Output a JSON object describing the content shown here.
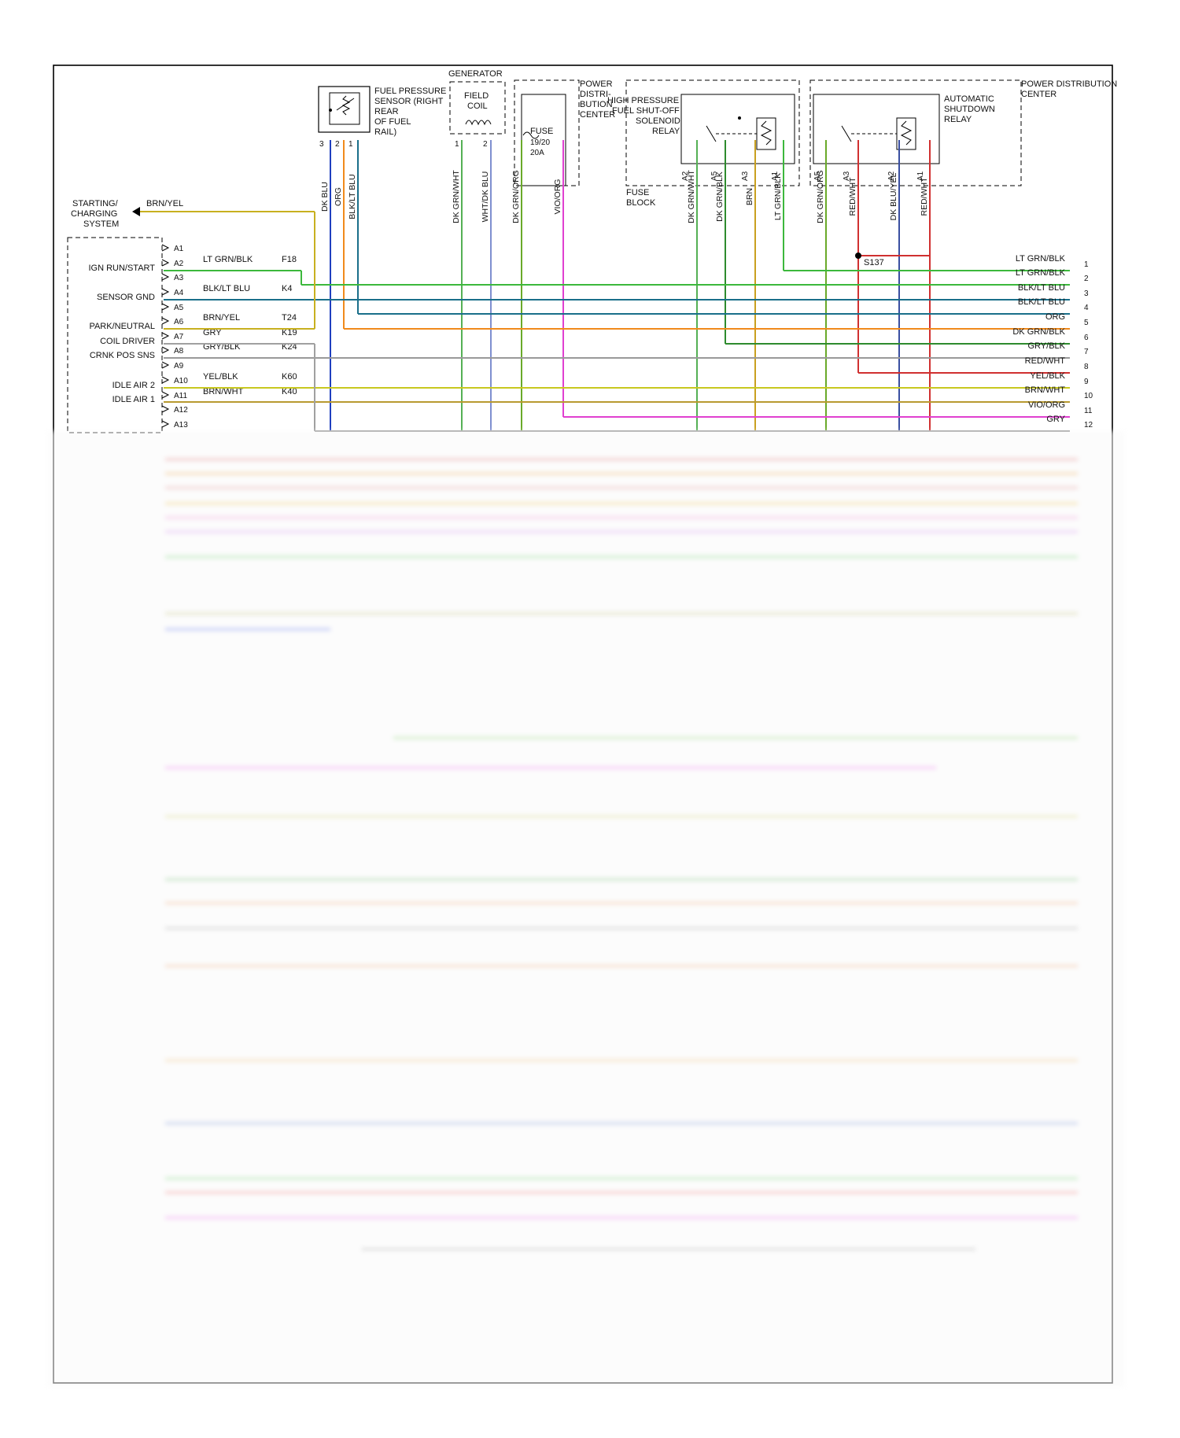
{
  "components": {
    "fuel_pressure_sensor": {
      "label": [
        "FUEL PRESSURE",
        "SENSOR (RIGHT",
        "REAR",
        "OF FUEL",
        "RAIL)"
      ],
      "pins": [
        "3",
        "2",
        "1"
      ]
    },
    "generator": {
      "label": "GENERATOR",
      "coil_label": [
        "FIELD",
        "COIL"
      ],
      "pins": [
        "1",
        "2"
      ]
    },
    "pdc_fuse": {
      "label": [
        "POWER",
        "DISTRI-",
        "BUTION",
        "CENTER"
      ],
      "fuse": [
        "FUSE",
        "19/20",
        "20A"
      ]
    },
    "hp_relay": {
      "label": [
        "HIGH PRESSURE",
        "FUEL SHUT-OFF",
        "SOLENOID",
        "RELAY"
      ],
      "fuse_block": [
        "FUSE",
        "BLOCK"
      ],
      "pins": [
        "A2",
        "A5",
        "A3",
        "A1"
      ]
    },
    "asd_relay": {
      "label": [
        "AUTOMATIC",
        "SHUTDOWN",
        "RELAY"
      ],
      "pdc_label": [
        "POWER DISTRIBUTION",
        "CENTER"
      ],
      "pins": [
        "A5",
        "A3",
        "A2",
        "A1"
      ]
    },
    "starting_charging": {
      "label": [
        "STARTING/",
        "CHARGING",
        "SYSTEM"
      ],
      "wire": "BRN/YEL"
    },
    "splice": "S137"
  },
  "top_wires": [
    {
      "name": "DK BLU",
      "color": "#1f3fbf"
    },
    {
      "name": "ORG",
      "color": "#f08a1c"
    },
    {
      "name": "BLK/LT BLU",
      "color": "#1a6f8a"
    },
    {
      "name": "DK GRN/WHT",
      "color": "#55b055"
    },
    {
      "name": "WHT/DK BLU",
      "color": "#7f8fd0"
    },
    {
      "name": "DK GRN/ORG",
      "color": "#6aaa2a"
    },
    {
      "name": "VIO/ORG",
      "color": "#e040d0"
    },
    {
      "name": "DK GRN/WHT",
      "color": "#55b055"
    },
    {
      "name": "DK GRN/BLK",
      "color": "#2e8b2e"
    },
    {
      "name": "BRN",
      "color": "#c9a020"
    },
    {
      "name": "LT GRN/BLK",
      "color": "#3cb83c"
    },
    {
      "name": "DK GRN/ORG",
      "color": "#6aaa2a"
    },
    {
      "name": "RED/WHT",
      "color": "#d03030"
    },
    {
      "name": "DK BLU/YEL",
      "color": "#3a4fa0"
    },
    {
      "name": "RED/WHT",
      "color": "#d03030"
    }
  ],
  "ecm": {
    "functions": [
      "IGN RUN/START",
      "SENSOR GND",
      "PARK/NEUTRAL",
      "COIL DRIVER",
      "CRNK POS SNS",
      "IDLE AIR 2",
      "IDLE AIR 1"
    ],
    "pins": [
      "A1",
      "A2",
      "A3",
      "A4",
      "A5",
      "A6",
      "A7",
      "A8",
      "A9",
      "A10",
      "A11",
      "A12",
      "A13"
    ],
    "wires": [
      {
        "pin": "A2",
        "wire": "LT GRN/BLK",
        "circuit": "F18"
      },
      {
        "pin": "A4",
        "wire": "BLK/LT BLU",
        "circuit": "K4"
      },
      {
        "pin": "A6",
        "wire": "BRN/YEL",
        "circuit": "T24"
      },
      {
        "pin": "A7",
        "wire": "GRY",
        "circuit": "K19"
      },
      {
        "pin": "A8",
        "wire": "GRY/BLK",
        "circuit": "K24"
      },
      {
        "pin": "A10",
        "wire": "YEL/BLK",
        "circuit": "K60"
      },
      {
        "pin": "A11",
        "wire": "BRN/WHT",
        "circuit": "K40"
      }
    ]
  },
  "right_wires": [
    {
      "label": "LT GRN/BLK",
      "num": "1",
      "color": "#3cb83c"
    },
    {
      "label": "LT GRN/BLK",
      "num": "2",
      "color": "#3cb83c"
    },
    {
      "label": "BLK/LT BLU",
      "num": "3",
      "color": "#1a6f8a"
    },
    {
      "label": "BLK/LT BLU",
      "num": "4",
      "color": "#1a6f8a"
    },
    {
      "label": "ORG",
      "num": "5",
      "color": "#f08a1c"
    },
    {
      "label": "DK GRN/BLK",
      "num": "6",
      "color": "#2e8b2e"
    },
    {
      "label": "GRY/BLK",
      "num": "7",
      "color": "#9a9a9a"
    },
    {
      "label": "RED/WHT",
      "num": "8",
      "color": "#d03030"
    },
    {
      "label": "YEL/BLK",
      "num": "9",
      "color": "#c8c820"
    },
    {
      "label": "BRN/WHT",
      "num": "10",
      "color": "#b89a30"
    },
    {
      "label": "VIO/ORG",
      "num": "11",
      "color": "#e040d0"
    },
    {
      "label": "GRY",
      "num": "12",
      "color": "#a0a0a0"
    }
  ]
}
